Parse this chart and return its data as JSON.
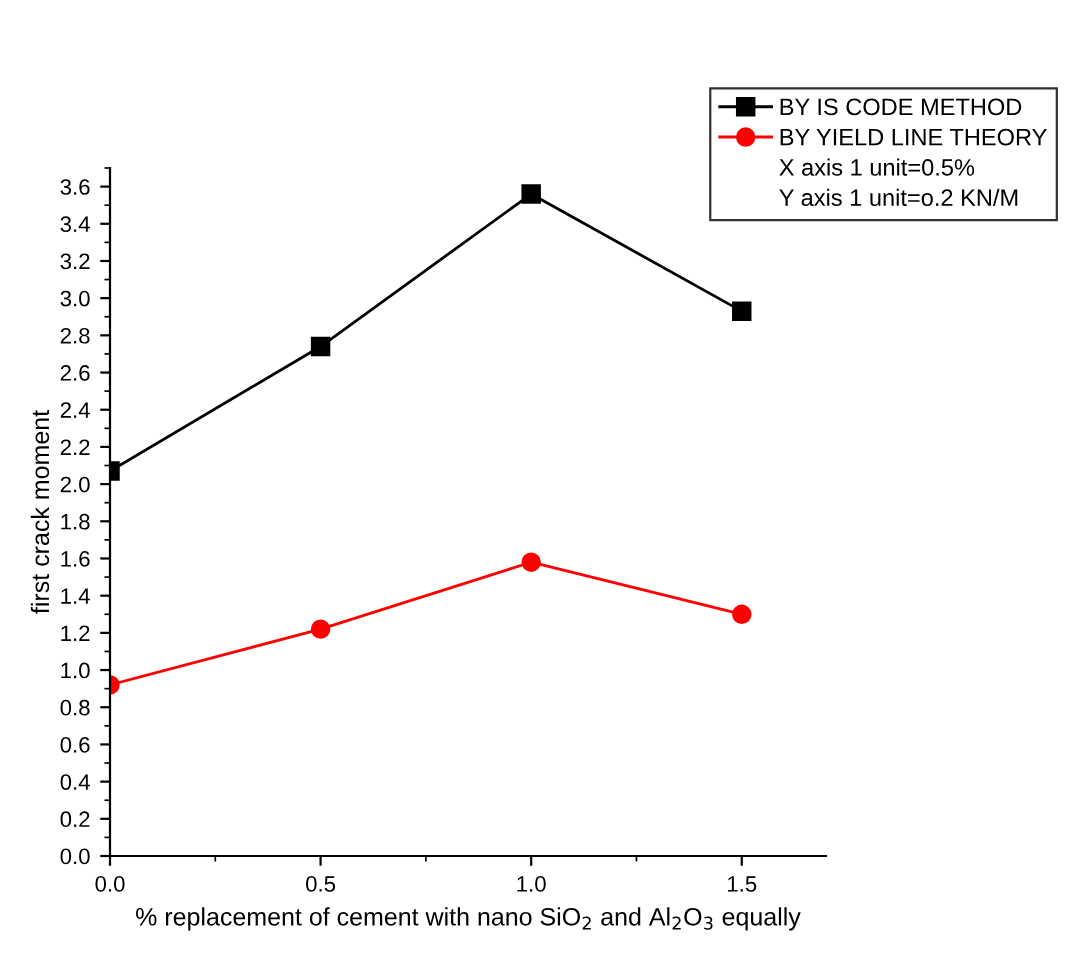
{
  "chart_data": {
    "type": "line",
    "xlabel": "% replacement of cement with nano SiO$_{2}$ and Al$_{2}$O$_{3}$ equally",
    "ylabel": "first crack moment",
    "x": [
      0.0,
      0.5,
      1.0,
      1.5
    ],
    "series": [
      {
        "name": "BY IS CODE METHOD",
        "color": "#000000",
        "marker": "square",
        "values": [
          2.07,
          2.74,
          3.56,
          2.93
        ]
      },
      {
        "name": "BY YIELD LINE THEORY",
        "color": "#ff0000",
        "marker": "circle",
        "values": [
          0.92,
          1.22,
          1.58,
          1.3
        ]
      }
    ],
    "annotations": [
      "X axis 1 unit=0.5%",
      "Y axis 1 unit=o.2 KN/M"
    ],
    "xlim": [
      0,
      1.7
    ],
    "xticks": [
      {
        "value": 0,
        "label": "0.0"
      },
      0.5,
      {
        "value": 1,
        "label": "1.0"
      },
      1.5
    ],
    "ylim": [
      0,
      3.7
    ],
    "yticks": [
      {
        "value": 0,
        "label": "0.0"
      },
      0.2,
      0.4,
      0.6,
      0.8,
      {
        "value": 1,
        "label": "1.0"
      },
      1.2,
      1.4,
      1.6,
      1.8,
      {
        "value": 2,
        "label": "2.0"
      },
      2.2,
      2.4,
      2.6,
      2.8,
      {
        "value": 3,
        "label": "3.0"
      },
      3.2,
      3.4,
      3.6
    ],
    "grid": false,
    "legend": "top right",
    "line_style": "solid"
  }
}
